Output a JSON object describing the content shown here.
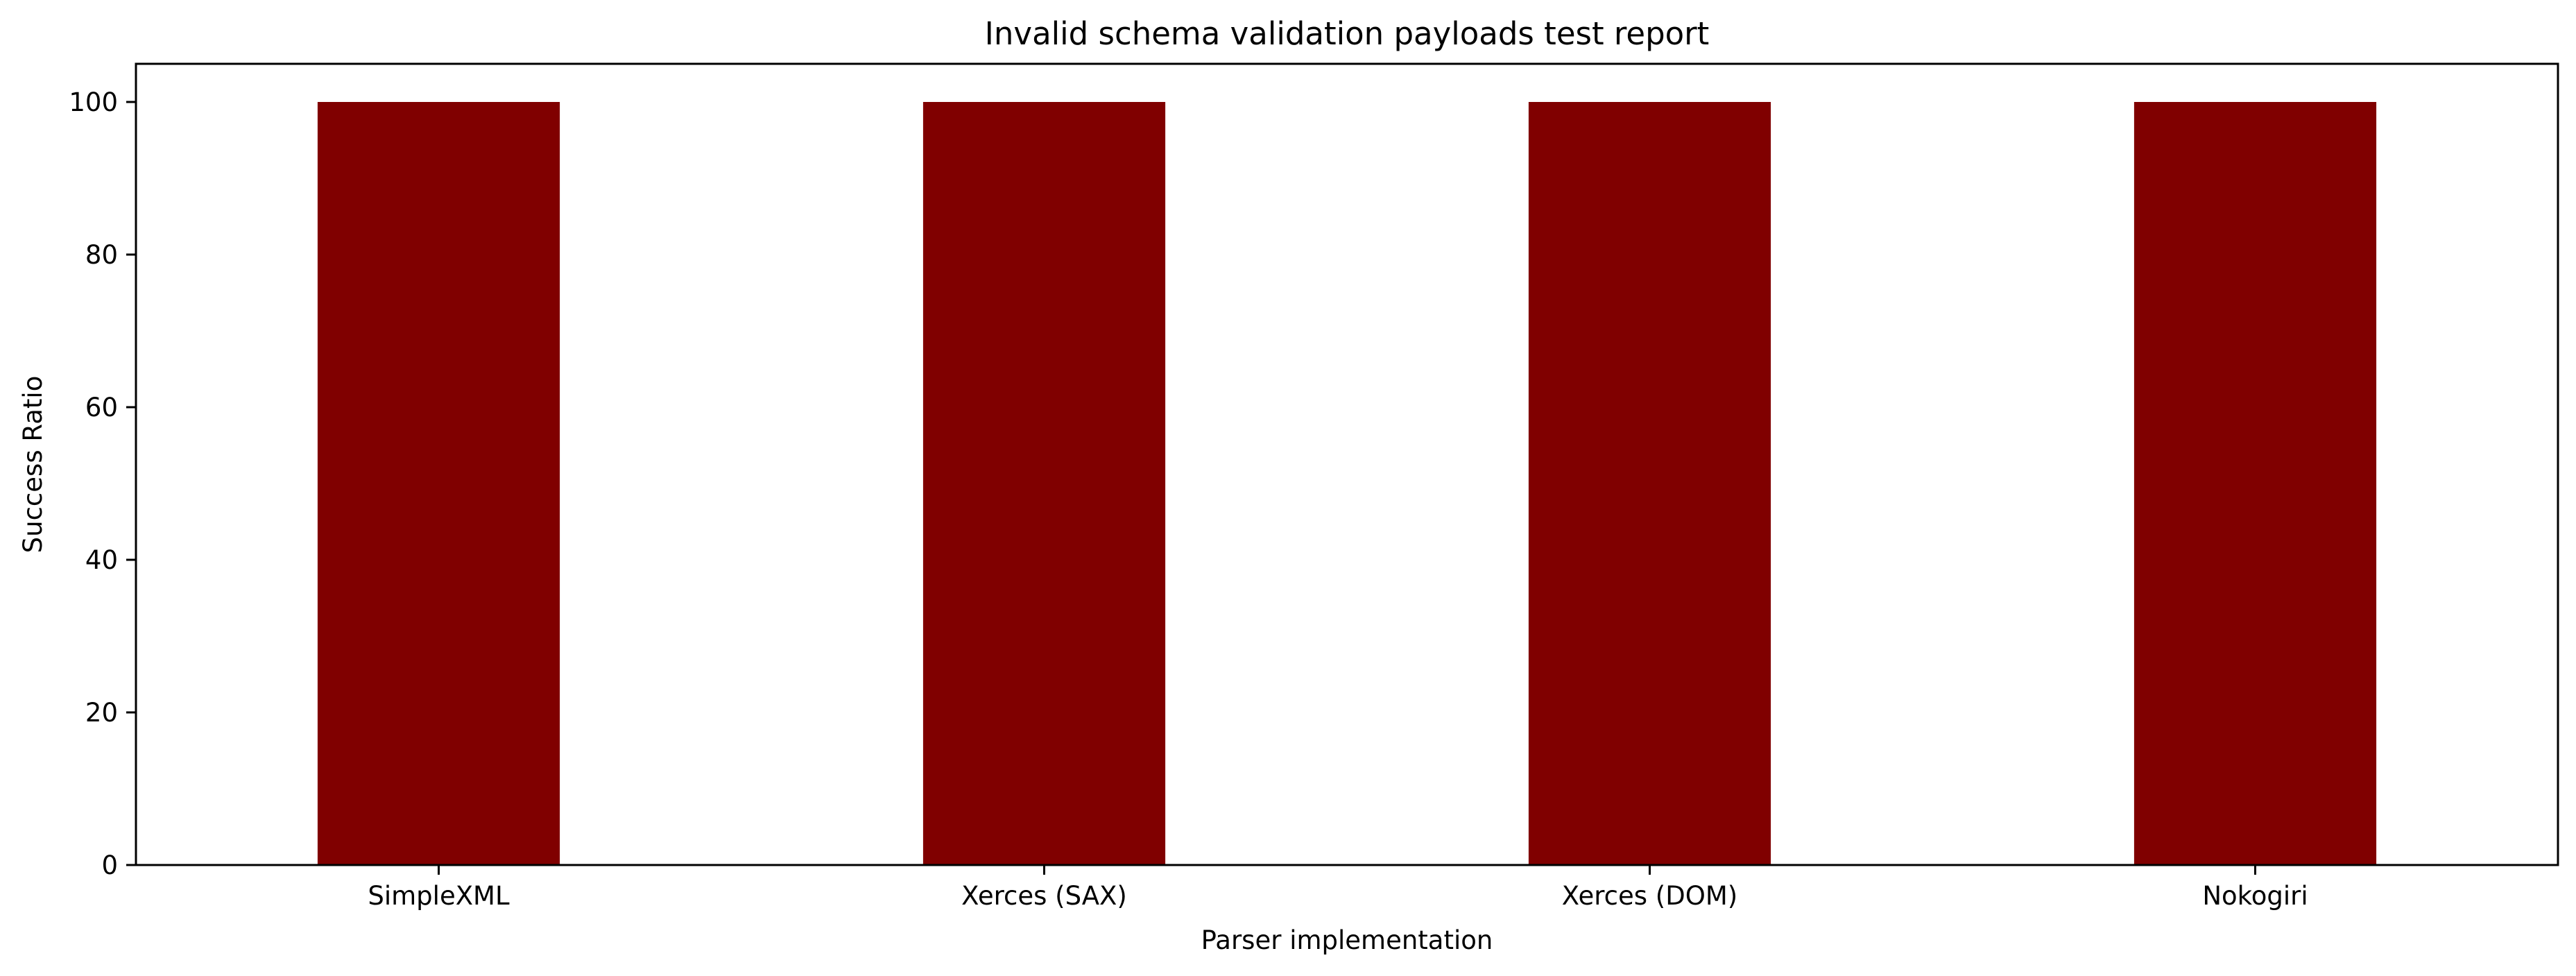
{
  "chart_data": {
    "type": "bar",
    "title": "Invalid schema validation payloads test report",
    "xlabel": "Parser implementation",
    "ylabel": "Success Ratio",
    "categories": [
      "SimpleXML",
      "Xerces (SAX)",
      "Xerces (DOM)",
      "Nokogiri"
    ],
    "series": [
      {
        "values": [
          100,
          100,
          100,
          100
        ],
        "color": "#800000"
      }
    ],
    "ylim": [
      0,
      105
    ],
    "yticks": [
      0,
      20,
      40,
      60,
      80,
      100
    ],
    "grid": false,
    "legend": "none"
  }
}
